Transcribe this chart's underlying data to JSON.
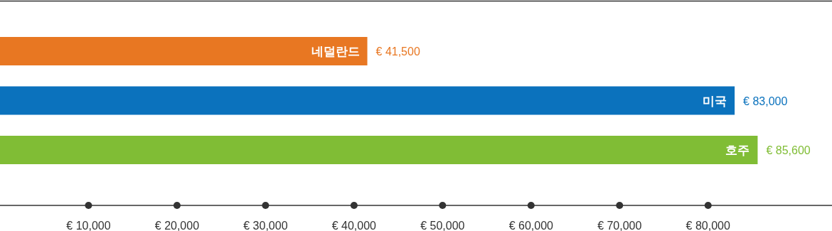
{
  "chart_data": {
    "type": "bar",
    "orientation": "horizontal",
    "categories": [
      "네덜란드",
      "미국",
      "호주"
    ],
    "values": [
      41500,
      83000,
      85600
    ],
    "colors": [
      "#e87722",
      "#0b72bd",
      "#80bd35"
    ],
    "value_labels": [
      "€ 41,500",
      "€ 83,000",
      "€ 85,600"
    ],
    "xlim": [
      0,
      94000
    ],
    "xticks": [
      {
        "value": 10000,
        "label": "€ 10,000"
      },
      {
        "value": 20000,
        "label": "€ 20,000"
      },
      {
        "value": 30000,
        "label": "€ 30,000"
      },
      {
        "value": 40000,
        "label": "€ 40,000"
      },
      {
        "value": 50000,
        "label": "€ 50,000"
      },
      {
        "value": 60000,
        "label": "€ 60,000"
      },
      {
        "value": 70000,
        "label": "€ 70,000"
      },
      {
        "value": 80000,
        "label": "€ 80,000"
      }
    ],
    "grid": false
  }
}
